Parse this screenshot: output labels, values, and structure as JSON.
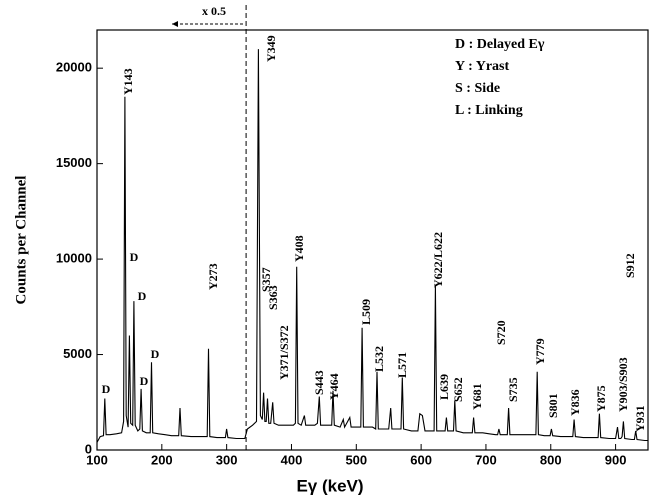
{
  "chart_data": {
    "type": "line",
    "xlabel": "Eγ (keV)",
    "ylabel": "Counts per Channel",
    "scale_note": "x 0.5",
    "scale_change_x": 330,
    "legend_text": [
      "D : Delayed Eγ",
      "Y : Yrast",
      "S : Side",
      "L : Linking"
    ],
    "xlim": [
      100,
      950
    ],
    "ylim": [
      0,
      22000
    ],
    "xticks": [
      100,
      200,
      300,
      400,
      500,
      600,
      700,
      800,
      900
    ],
    "yticks": [
      0,
      5000,
      10000,
      15000,
      20000
    ],
    "color": "#000000",
    "annotations": [
      "D",
      "D",
      "D",
      "D",
      "D",
      "Y143",
      "Y273",
      "Y349",
      "S357",
      "S363",
      "Y371/S372",
      "Y408",
      "S443",
      "Y464",
      "L509",
      "L532",
      "L571",
      "Y622/L622",
      "L639",
      "S652",
      "Y681",
      "S720",
      "S735",
      "Y779",
      "S801",
      "Y836",
      "Y875",
      "Y903/S903",
      "S912",
      "Y931"
    ],
    "x": [
      100,
      105,
      110,
      112,
      114,
      120,
      130,
      138,
      141,
      143,
      145,
      148,
      150,
      152,
      155,
      157,
      159,
      163,
      166,
      168,
      170,
      176,
      182,
      184,
      186,
      195,
      205,
      215,
      226,
      228,
      230,
      245,
      260,
      270,
      272,
      274,
      285,
      298,
      300,
      302,
      315,
      328,
      332,
      340,
      346,
      349,
      352,
      355,
      357,
      359,
      361,
      363,
      365,
      368,
      371,
      373,
      380,
      390,
      398,
      403,
      406,
      408,
      410,
      415,
      420,
      422,
      430,
      436,
      440,
      443,
      445,
      455,
      460,
      462,
      464,
      466,
      475,
      480,
      482,
      490,
      492,
      500,
      507,
      509,
      511,
      520,
      525,
      530,
      532,
      534,
      540,
      550,
      553,
      555,
      565,
      569,
      571,
      573,
      585,
      595,
      598,
      602,
      606,
      612,
      620,
      622,
      624,
      630,
      637,
      639,
      641,
      645,
      650,
      652,
      654,
      665,
      675,
      679,
      681,
      683,
      695,
      705,
      715,
      718,
      720,
      722,
      728,
      733,
      735,
      737,
      750,
      765,
      770,
      777,
      779,
      781,
      790,
      799,
      801,
      803,
      815,
      825,
      834,
      836,
      838,
      850,
      860,
      873,
      875,
      877,
      890,
      900,
      903,
      905,
      908,
      910,
      912,
      914,
      925,
      929,
      931,
      933,
      945,
      950
    ],
    "values": [
      400,
      700,
      750,
      2700,
      800,
      800,
      850,
      900,
      1500,
      18500,
      1800,
      1200,
      6000,
      1400,
      1300,
      7800,
      1300,
      1000,
      1100,
      3200,
      1000,
      900,
      900,
      4600,
      900,
      850,
      800,
      750,
      750,
      2200,
      750,
      700,
      700,
      700,
      5300,
      700,
      650,
      650,
      1100,
      650,
      600,
      600,
      1100,
      1300,
      1500,
      21000,
      1800,
      1600,
      3000,
      1500,
      1500,
      2700,
      1400,
      1400,
      2500,
      1400,
      1300,
      1300,
      1300,
      1300,
      1400,
      9600,
      1400,
      1300,
      1800,
      1300,
      1300,
      1300,
      1400,
      2800,
      1300,
      1300,
      1300,
      1300,
      3100,
      1300,
      1200,
      1600,
      1200,
      1700,
      1200,
      1200,
      1200,
      6400,
      1200,
      1200,
      1200,
      1100,
      4100,
      1100,
      1100,
      1100,
      2200,
      1100,
      1100,
      1100,
      3800,
      1100,
      1000,
      1000,
      1900,
      1800,
      1000,
      1000,
      1000,
      8600,
      1000,
      1000,
      1000,
      1700,
      1000,
      1000,
      1000,
      2600,
      1000,
      900,
      900,
      900,
      1700,
      900,
      900,
      850,
      800,
      800,
      1100,
      800,
      800,
      800,
      2200,
      800,
      800,
      800,
      800,
      800,
      4100,
      800,
      750,
      750,
      1100,
      750,
      700,
      700,
      700,
      1600,
      700,
      650,
      650,
      650,
      1900,
      650,
      600,
      600,
      1200,
      600,
      600,
      700,
      1500,
      600,
      550,
      550,
      1000,
      550,
      500,
      500
    ]
  }
}
